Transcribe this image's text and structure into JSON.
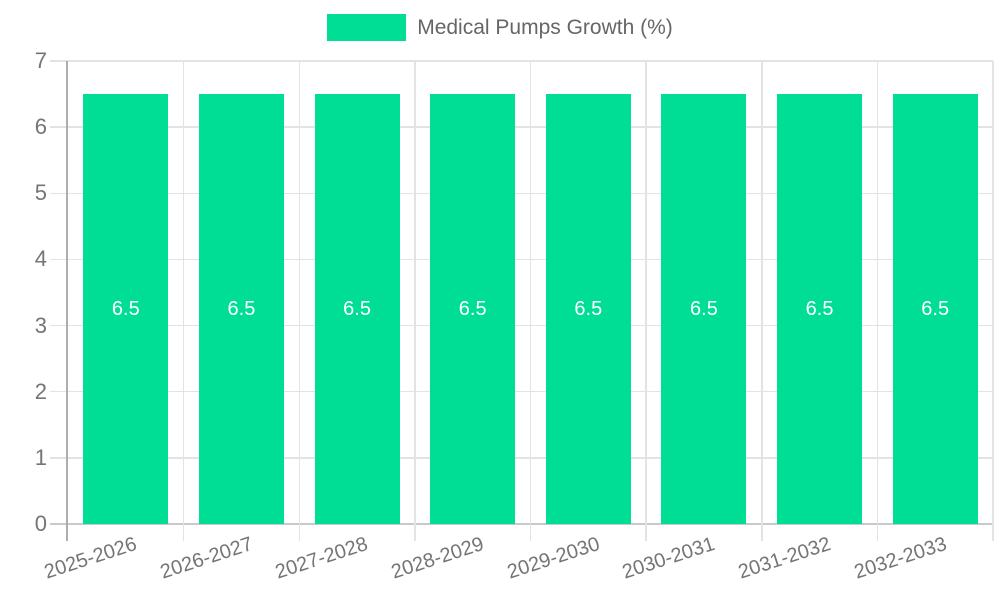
{
  "chart_data": {
    "type": "bar",
    "title": "Medical Pumps Growth (%)",
    "xlabel": "",
    "ylabel": "",
    "categories": [
      "2025-2026",
      "2026-2027",
      "2027-2028",
      "2028-2029",
      "2029-2030",
      "2030-2031",
      "2031-2032",
      "2032-2033"
    ],
    "series": [
      {
        "name": "Medical Pumps Growth (%)",
        "values": [
          6.5,
          6.5,
          6.5,
          6.5,
          6.5,
          6.5,
          6.5,
          6.5
        ]
      }
    ],
    "value_labels": [
      "6.5",
      "6.5",
      "6.5",
      "6.5",
      "6.5",
      "6.5",
      "6.5",
      "6.5"
    ],
    "yticks": [
      0,
      1,
      2,
      3,
      4,
      5,
      6,
      7
    ],
    "ylim": [
      0,
      7
    ],
    "grid": true,
    "legend_position": "top",
    "colors": {
      "bar": "#00DE96",
      "value_label": "#FFFFFF",
      "axis_text": "#757575",
      "legend_text": "#666666",
      "gridline": "#E3E3E3",
      "zero_line": "#C9C9C9",
      "axis_line": "#ADADAD"
    }
  }
}
